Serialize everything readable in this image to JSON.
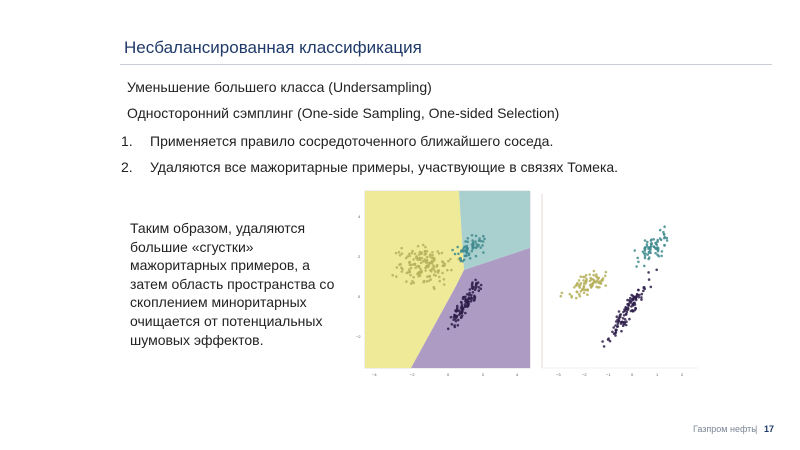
{
  "slide": {
    "title": "Несбалансированная классификация",
    "line1": "Уменьшение большего класса (Undersampling)",
    "line2": "Односторонний сэмплинг (One-side Sampling, One-sided Selection)",
    "items": [
      {
        "num": "1.",
        "text": "Применяется правило сосредоточенного ближайшего соседа."
      },
      {
        "num": "2.",
        "text": "Удаляются все мажоритарные примеры, участвующие в связях Томека."
      }
    ],
    "paragraph": "Таким образом, удаляются большие «сгустки» мажоритарных примеров, а затем область пространства со скоплением миноритарных очищается от потенциальных шумовых эффектов."
  },
  "colors": {
    "yellow_region": "#eeea98",
    "teal_region": "#a9cfcf",
    "purple_region": "#ad9bc4",
    "yellow_points": "#b5b05a",
    "teal_points": "#3f8b8e",
    "purple_points": "#2e1d4a",
    "title": "#1f3a6a"
  },
  "footer": {
    "company": "Газпром нефть",
    "separator": "|",
    "page": "17"
  }
}
